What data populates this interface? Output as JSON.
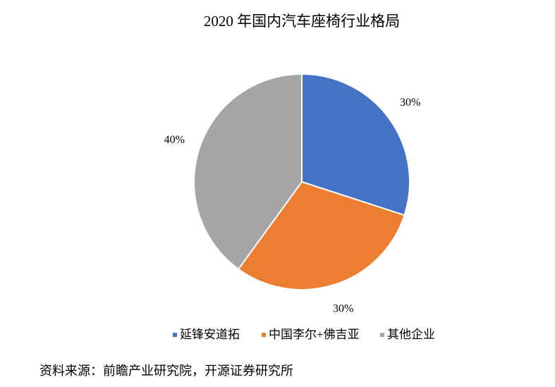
{
  "chart_data": {
    "type": "pie",
    "title": "2020 年国内汽车座椅行业格局",
    "categories": [
      "延锋安道拓",
      "中国李尔+佛吉亚",
      "其他企业"
    ],
    "values": [
      30,
      30,
      40
    ],
    "value_labels": [
      "30%",
      "30%",
      "40%"
    ],
    "colors": [
      "#4472c4",
      "#ed7d31",
      "#a5a5a5"
    ],
    "legend": "bottom"
  },
  "source": "资料来源：前瞻产业研究院，开源证券研究所"
}
